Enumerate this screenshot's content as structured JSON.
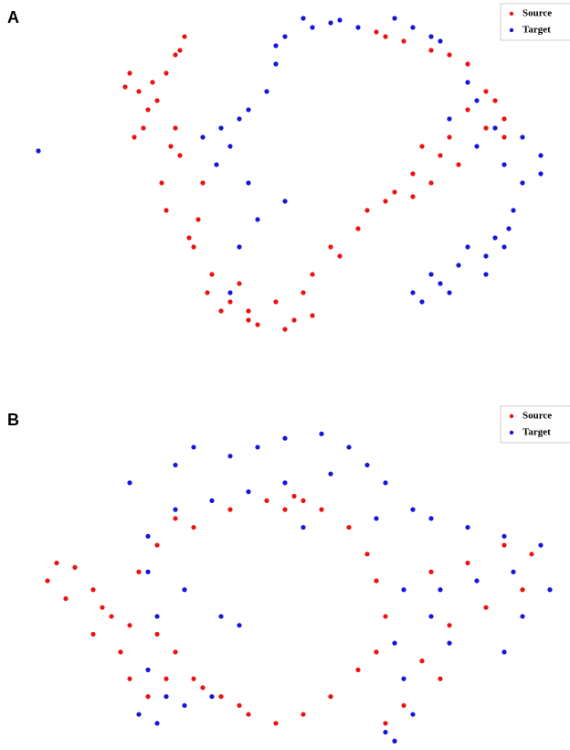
{
  "chart_data": [
    {
      "type": "scatter",
      "panel_label": "A",
      "xlim": [
        0,
        600
      ],
      "ylim": [
        380,
        10
      ],
      "legend": "upper right",
      "series": [
        {
          "name": "Source",
          "color": "#ee1111",
          "x": [
            190,
            185,
            180,
            170,
            130,
            140,
            125,
            150,
            135,
            145,
            180,
            175,
            185,
            165,
            170,
            205,
            210,
            200,
            195,
            220,
            240,
            260,
            290,
            320,
            330,
            350,
            360,
            380,
            390,
            410,
            420,
            440,
            450,
            470,
            490,
            480,
            400,
            410,
            430,
            460,
            480,
            500,
            520,
            530,
            540,
            540,
            230,
            260,
            300,
            330,
            310,
            270,
            250,
            215,
            160,
            155,
            460,
            440,
            500,
            520
          ],
          "y": [
            40,
            55,
            60,
            80,
            80,
            100,
            95,
            120,
            150,
            140,
            140,
            160,
            170,
            200,
            230,
            240,
            200,
            270,
            260,
            300,
            330,
            340,
            330,
            320,
            300,
            270,
            280,
            250,
            230,
            220,
            210,
            190,
            160,
            170,
            180,
            150,
            35,
            40,
            45,
            55,
            60,
            70,
            100,
            110,
            130,
            150,
            340,
            350,
            360,
            345,
            350,
            355,
            310,
            320,
            110,
            90,
            200,
            215,
            120,
            140
          ]
        },
        {
          "name": "Target",
          "color": "#1515dd",
          "x": [
            320,
            350,
            380,
            300,
            290,
            280,
            250,
            240,
            260,
            270,
            250,
            210,
            230,
            300,
            420,
            460,
            500,
            480,
            510,
            540,
            560,
            580,
            550,
            540,
            520,
            490,
            460,
            440,
            470,
            30,
            240,
            330,
            360,
            290,
            260,
            225,
            440,
            470,
            510,
            530,
            560,
            580,
            545,
            520,
            480,
            450,
            500,
            530
          ],
          "y": [
            20,
            25,
            30,
            40,
            70,
            100,
            130,
            160,
            200,
            240,
            270,
            150,
            140,
            220,
            20,
            40,
            90,
            130,
            160,
            180,
            200,
            170,
            230,
            270,
            280,
            290,
            300,
            320,
            310,
            165,
            320,
            30,
            22,
            50,
            120,
            180,
            30,
            45,
            110,
            140,
            150,
            190,
            250,
            300,
            320,
            330,
            270,
            260
          ]
        }
      ]
    },
    {
      "type": "scatter",
      "panel_label": "B",
      "xlim": [
        0,
        600
      ],
      "ylim": [
        380,
        0
      ],
      "legend": "upper right",
      "series": [
        {
          "name": "Source",
          "color": "#ee1111",
          "x": [
            40,
            70,
            90,
            110,
            120,
            130,
            100,
            60,
            140,
            160,
            200,
            240,
            280,
            310,
            340,
            370,
            390,
            400,
            410,
            400,
            380,
            350,
            320,
            290,
            260,
            230,
            200,
            180,
            160,
            150,
            170,
            460,
            500,
            540,
            570,
            560,
            520,
            480,
            450,
            470,
            430,
            410,
            130,
            90,
            50,
            300,
            320,
            250,
            210,
            180
          ],
          "y": [
            190,
            175,
            200,
            230,
            270,
            300,
            220,
            210,
            180,
            150,
            130,
            110,
            100,
            95,
            110,
            130,
            160,
            190,
            230,
            270,
            290,
            320,
            340,
            350,
            340,
            320,
            300,
            270,
            250,
            320,
            300,
            180,
            170,
            150,
            160,
            200,
            220,
            240,
            280,
            300,
            330,
            350,
            240,
            250,
            170,
            110,
            100,
            330,
            310,
            120
          ]
        },
        {
          "name": "Target",
          "color": "#1515dd",
          "x": [
            130,
            180,
            200,
            240,
            270,
            300,
            340,
            370,
            390,
            410,
            440,
            460,
            500,
            540,
            580,
            590,
            560,
            540,
            480,
            460,
            430,
            420,
            430,
            440,
            410,
            420,
            150,
            150,
            160,
            150,
            170,
            190,
            220,
            250,
            300,
            320,
            260,
            220,
            180,
            350,
            400,
            470,
            510,
            550,
            190,
            230,
            140,
            160
          ],
          "y": [
            80,
            60,
            40,
            50,
            40,
            30,
            25,
            40,
            60,
            80,
            110,
            120,
            130,
            140,
            150,
            200,
            230,
            270,
            260,
            230,
            200,
            260,
            300,
            340,
            360,
            370,
            140,
            180,
            230,
            290,
            320,
            330,
            320,
            240,
            80,
            130,
            90,
            100,
            110,
            70,
            120,
            200,
            190,
            180,
            200,
            230,
            340,
            350
          ]
        }
      ]
    }
  ]
}
